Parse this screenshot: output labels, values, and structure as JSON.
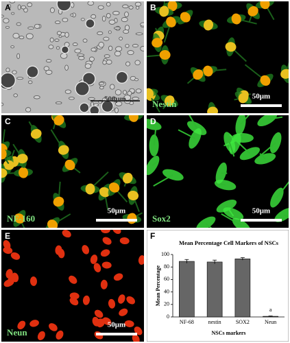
{
  "panels": [
    {
      "label": "A",
      "scale_bar": "500μm"
    },
    {
      "label": "B",
      "marker": "Nestin",
      "scale_bar": "50μm"
    },
    {
      "label": "C",
      "marker": "NF-160",
      "scale_bar": "50μm"
    },
    {
      "label": "D",
      "marker": "Sox2",
      "scale_bar": "50μm"
    },
    {
      "label": "E",
      "marker": "Neun",
      "scale_bar": "50μm"
    },
    {
      "label": "F"
    }
  ],
  "chart_data": {
    "type": "bar",
    "title": "Mean Percentage Cell Markers of NSCs",
    "y_label": "Mean Percentage",
    "x_label": "NSCs markers",
    "categories": [
      "NF-68",
      "nestin",
      "SOX2",
      "Neun"
    ],
    "values": [
      89,
      88,
      93,
      1
    ],
    "errors": [
      3,
      3,
      2,
      0.5
    ],
    "annotation": "a",
    "ylim": [
      0,
      100
    ],
    "yticks": [
      0,
      20,
      40,
      60,
      80,
      100
    ]
  }
}
